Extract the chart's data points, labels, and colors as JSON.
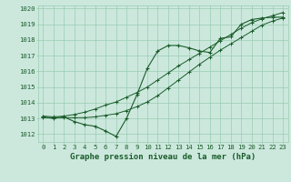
{
  "title": "Graphe pression niveau de la mer (hPa)",
  "bg_color": "#cce8dd",
  "grid_color": "#99ccb3",
  "line_color": "#1a5c2a",
  "x_values": [
    0,
    1,
    2,
    3,
    4,
    5,
    6,
    7,
    8,
    9,
    10,
    11,
    12,
    13,
    14,
    15,
    16,
    17,
    18,
    19,
    20,
    21,
    22,
    23
  ],
  "pressure_actual": [
    1013.1,
    1013.0,
    1013.1,
    1012.8,
    1012.6,
    1012.5,
    1012.2,
    1011.85,
    1013.0,
    1014.5,
    1016.2,
    1017.3,
    1017.65,
    1017.65,
    1017.5,
    1017.3,
    1017.2,
    1018.1,
    1018.2,
    1019.0,
    1019.3,
    1019.4,
    1019.45,
    1019.45
  ],
  "pressure_min": [
    1013.05,
    1013.05,
    1013.05,
    1013.05,
    1013.05,
    1013.1,
    1013.2,
    1013.3,
    1013.5,
    1013.75,
    1014.05,
    1014.45,
    1014.95,
    1015.45,
    1015.95,
    1016.45,
    1016.9,
    1017.35,
    1017.75,
    1018.15,
    1018.55,
    1018.95,
    1019.2,
    1019.4
  ],
  "pressure_max": [
    1013.15,
    1013.1,
    1013.15,
    1013.25,
    1013.4,
    1013.6,
    1013.85,
    1014.05,
    1014.35,
    1014.65,
    1015.0,
    1015.45,
    1015.9,
    1016.35,
    1016.75,
    1017.15,
    1017.55,
    1017.95,
    1018.35,
    1018.75,
    1019.1,
    1019.35,
    1019.55,
    1019.75
  ],
  "ylim": [
    1011.5,
    1020.2
  ],
  "yticks": [
    1012,
    1013,
    1014,
    1015,
    1016,
    1017,
    1018,
    1019,
    1020
  ],
  "xticks": [
    0,
    1,
    2,
    3,
    4,
    5,
    6,
    7,
    8,
    9,
    10,
    11,
    12,
    13,
    14,
    15,
    16,
    17,
    18,
    19,
    20,
    21,
    22,
    23
  ],
  "title_fontsize": 6.5,
  "tick_fontsize": 5.2,
  "marker": "+"
}
